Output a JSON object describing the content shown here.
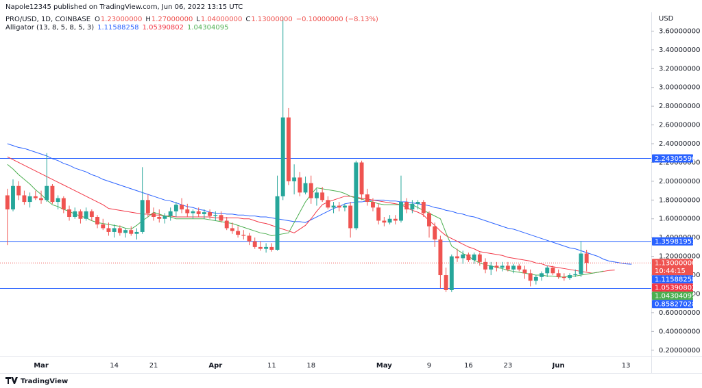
{
  "chart_data": {
    "type": "candlestick",
    "header": "Napole12345 published on TradingView.com, Jun 06, 2022 13:15 UTC",
    "legend": {
      "symbol": "PRO/USD, 1D, COINBASE",
      "items": [
        {
          "key": "O",
          "value": "1.23000000"
        },
        {
          "key": "H",
          "value": "1.27000000"
        },
        {
          "key": "L",
          "value": "1.04000000"
        },
        {
          "key": "C",
          "value": "1.13000000"
        }
      ],
      "change": "−0.10000000 (−8.13%)"
    },
    "indicator": "Alligator (13, 8, 5, 8, 5, 3)",
    "currency": "USD",
    "brand": "TradingView",
    "up_color": "#26a69a",
    "down_color": "#ef5350",
    "grid": false,
    "categories": [
      null,
      null,
      null,
      null,
      null,
      null,
      "Mar",
      null,
      null,
      null,
      null,
      null,
      null,
      null,
      null,
      null,
      null,
      null,
      null,
      "14",
      null,
      null,
      null,
      null,
      null,
      null,
      "21",
      null,
      null,
      null,
      null,
      null,
      null,
      null,
      null,
      null,
      null,
      "Apr",
      null,
      null,
      null,
      null,
      null,
      null,
      null,
      null,
      null,
      "11",
      null,
      null,
      null,
      null,
      null,
      null,
      "18",
      null,
      null,
      null,
      null,
      null,
      null,
      null,
      null,
      null,
      null,
      null,
      null,
      "May",
      null,
      null,
      null,
      null,
      null,
      null,
      null,
      "9",
      null,
      null,
      null,
      null,
      null,
      null,
      "16",
      null,
      null,
      null,
      null,
      null,
      null,
      "23",
      null,
      null,
      null,
      null,
      null,
      null,
      null,
      null,
      "Jun",
      null,
      null,
      null,
      null,
      null,
      null,
      null,
      null,
      null,
      null,
      null,
      "13",
      null,
      null,
      null,
      null
    ],
    "open": [
      1.85,
      1.7,
      1.95,
      1.85,
      1.78,
      1.84,
      1.82,
      1.8,
      1.95,
      1.78,
      1.82,
      1.7,
      1.62,
      1.68,
      1.6,
      1.68,
      1.62,
      1.54,
      1.5,
      1.46,
      1.5,
      1.45,
      1.48,
      1.44,
      1.46,
      1.8,
      1.66,
      1.62,
      1.6,
      1.63,
      1.68,
      1.75,
      1.7,
      1.66,
      1.68,
      1.65,
      1.67,
      1.63,
      1.64,
      1.58,
      1.5,
      1.47,
      1.43,
      1.42,
      1.36,
      1.3,
      1.28,
      1.3,
      1.27,
      1.84,
      2.68,
      2.0,
      2.04,
      1.88,
      1.98,
      1.82,
      1.88,
      1.8,
      1.72,
      1.74,
      1.72,
      1.74,
      1.5,
      2.2,
      1.86,
      1.78,
      1.72,
      1.58,
      1.56,
      1.6,
      1.58,
      1.78,
      1.7,
      1.76,
      1.78,
      1.66,
      1.52,
      1.38,
      1.0,
      0.84,
      1.2,
      1.18,
      1.22,
      1.16,
      1.22,
      1.14,
      1.06,
      1.1,
      1.08,
      1.1,
      1.06,
      1.1,
      1.06,
      1.02,
      0.94,
      0.98,
      1.02,
      1.08,
      1.02,
      0.98,
      0.97,
      1.0,
      1.01,
      1.23,
      null,
      null,
      null,
      null,
      null,
      null,
      null,
      null,
      null,
      null,
      null
    ],
    "high": [
      1.92,
      2.02,
      2.0,
      1.9,
      1.88,
      1.9,
      1.9,
      2.3,
      1.97,
      1.85,
      1.84,
      1.74,
      1.72,
      1.7,
      1.72,
      1.7,
      1.64,
      1.6,
      1.56,
      1.54,
      1.53,
      1.5,
      1.52,
      1.5,
      2.15,
      1.86,
      1.72,
      1.7,
      1.66,
      1.72,
      1.78,
      1.82,
      1.76,
      1.7,
      1.72,
      1.7,
      1.7,
      1.68,
      1.68,
      1.62,
      1.56,
      1.52,
      1.48,
      1.45,
      1.4,
      1.36,
      1.34,
      1.34,
      2.06,
      3.75,
      2.78,
      2.18,
      2.1,
      2.05,
      2.06,
      1.92,
      1.94,
      1.84,
      1.78,
      1.78,
      1.76,
      1.78,
      2.22,
      2.22,
      1.92,
      1.82,
      1.76,
      1.62,
      1.64,
      1.64,
      2.06,
      1.82,
      1.8,
      1.8,
      1.8,
      1.68,
      1.56,
      1.42,
      1.08,
      1.22,
      1.28,
      1.26,
      1.24,
      1.24,
      1.24,
      1.18,
      1.14,
      1.14,
      1.14,
      1.14,
      1.12,
      1.12,
      1.1,
      1.06,
      1.0,
      1.04,
      1.1,
      1.1,
      1.06,
      1.02,
      1.02,
      1.06,
      1.36,
      1.27,
      null,
      null,
      null,
      null,
      null,
      null,
      null,
      null,
      null,
      null,
      null
    ],
    "low": [
      1.32,
      1.68,
      1.8,
      1.75,
      1.72,
      1.8,
      1.76,
      1.78,
      1.76,
      1.7,
      1.66,
      1.58,
      1.6,
      1.55,
      1.58,
      1.58,
      1.5,
      1.48,
      1.42,
      1.4,
      1.42,
      1.4,
      1.42,
      1.38,
      1.44,
      1.62,
      1.58,
      1.56,
      1.55,
      1.58,
      1.62,
      1.66,
      1.62,
      1.6,
      1.62,
      1.6,
      1.6,
      1.58,
      1.56,
      1.48,
      1.44,
      1.4,
      1.38,
      1.32,
      1.28,
      1.26,
      1.24,
      1.25,
      1.26,
      1.8,
      1.96,
      1.86,
      1.84,
      1.86,
      1.76,
      1.74,
      1.78,
      1.7,
      1.66,
      1.68,
      1.68,
      1.4,
      1.48,
      1.8,
      1.74,
      1.68,
      1.54,
      1.52,
      1.54,
      1.54,
      1.56,
      1.66,
      1.66,
      1.7,
      1.62,
      1.4,
      1.3,
      0.86,
      0.82,
      0.82,
      1.14,
      1.12,
      1.14,
      1.12,
      1.1,
      1.02,
      1.0,
      1.04,
      1.04,
      1.04,
      1.02,
      1.04,
      0.96,
      0.88,
      0.9,
      0.94,
      0.98,
      1.0,
      0.96,
      0.94,
      0.95,
      0.98,
      0.98,
      1.04,
      null,
      null,
      null,
      null,
      null,
      null,
      null,
      null,
      null,
      null,
      null
    ],
    "close": [
      1.7,
      1.95,
      1.85,
      1.78,
      1.84,
      1.82,
      1.8,
      1.95,
      1.78,
      1.82,
      1.7,
      1.62,
      1.68,
      1.6,
      1.68,
      1.62,
      1.54,
      1.5,
      1.46,
      1.5,
      1.45,
      1.48,
      1.44,
      1.46,
      1.8,
      1.66,
      1.62,
      1.6,
      1.63,
      1.68,
      1.75,
      1.7,
      1.66,
      1.68,
      1.65,
      1.67,
      1.63,
      1.64,
      1.58,
      1.5,
      1.47,
      1.43,
      1.42,
      1.36,
      1.3,
      1.28,
      1.3,
      1.27,
      1.84,
      2.68,
      2.0,
      2.04,
      1.88,
      1.98,
      1.82,
      1.88,
      1.8,
      1.72,
      1.74,
      1.72,
      1.74,
      1.5,
      2.2,
      1.86,
      1.78,
      1.72,
      1.58,
      1.56,
      1.6,
      1.58,
      1.78,
      1.7,
      1.76,
      1.78,
      1.66,
      1.52,
      1.38,
      1.0,
      0.84,
      1.2,
      1.18,
      1.22,
      1.16,
      1.22,
      1.14,
      1.06,
      1.1,
      1.08,
      1.1,
      1.06,
      1.1,
      1.06,
      1.02,
      0.94,
      0.98,
      1.02,
      1.08,
      1.02,
      0.98,
      0.97,
      1.0,
      1.01,
      1.23,
      1.13,
      null,
      null,
      null,
      null,
      null,
      null,
      null,
      null,
      null,
      null,
      null
    ],
    "series": [
      {
        "color": "#2962ff",
        "values": [
          2.4,
          2.38,
          2.36,
          2.35,
          2.33,
          2.31,
          2.29,
          2.27,
          2.24,
          2.22,
          2.19,
          2.17,
          2.14,
          2.12,
          2.1,
          2.07,
          2.05,
          2.02,
          2.0,
          1.98,
          1.96,
          1.94,
          1.92,
          1.9,
          1.88,
          1.86,
          1.84,
          1.82,
          1.8,
          1.79,
          1.77,
          1.75,
          1.73,
          1.72,
          1.7,
          1.69,
          1.67,
          1.66,
          1.66,
          1.65,
          1.65,
          1.64,
          1.64,
          1.63,
          1.63,
          1.62,
          1.62,
          1.61,
          1.6,
          1.59,
          1.58,
          1.57,
          1.57,
          1.56,
          1.59,
          1.62,
          1.65,
          1.68,
          1.71,
          1.73,
          1.76,
          1.77,
          1.78,
          1.78,
          1.79,
          1.8,
          1.8,
          1.8,
          1.79,
          1.79,
          1.78,
          1.78,
          1.77,
          1.76,
          1.75,
          1.74,
          1.72,
          1.71,
          1.69,
          1.68,
          1.66,
          1.65,
          1.63,
          1.62,
          1.6,
          1.58,
          1.56,
          1.54,
          1.52,
          1.5,
          1.49,
          1.47,
          1.45,
          1.43,
          1.41,
          1.39,
          1.37,
          1.35,
          1.33,
          1.31,
          1.29,
          1.28,
          1.26,
          1.24,
          1.22,
          1.2,
          1.17,
          1.15,
          1.14,
          1.13,
          1.12,
          1.11588258,
          null,
          null,
          null
        ]
      },
      {
        "color": "#f23645",
        "values": [
          2.26,
          2.23,
          2.2,
          2.17,
          2.14,
          2.11,
          2.08,
          2.05,
          2.02,
          1.99,
          1.96,
          1.93,
          1.9,
          1.87,
          1.84,
          1.81,
          1.78,
          1.75,
          1.71,
          1.7,
          1.69,
          1.68,
          1.67,
          1.66,
          1.65,
          1.65,
          1.64,
          1.64,
          1.63,
          1.63,
          1.62,
          1.62,
          1.62,
          1.62,
          1.62,
          1.62,
          1.62,
          1.61,
          1.61,
          1.61,
          1.61,
          1.61,
          1.6,
          1.6,
          1.58,
          1.56,
          1.55,
          1.53,
          1.51,
          1.49,
          1.47,
          1.45,
          1.49,
          1.53,
          1.6,
          1.68,
          1.75,
          1.78,
          1.8,
          1.82,
          1.84,
          1.84,
          1.83,
          1.82,
          1.81,
          1.8,
          1.79,
          1.78,
          1.77,
          1.76,
          1.75,
          1.72,
          1.69,
          1.67,
          1.64,
          1.58,
          1.53,
          1.47,
          1.42,
          1.39,
          1.36,
          1.33,
          1.3,
          1.28,
          1.25,
          1.24,
          1.23,
          1.22,
          1.21,
          1.19,
          1.18,
          1.17,
          1.16,
          1.15,
          1.13,
          1.12,
          1.1,
          1.09,
          1.08,
          1.07,
          1.06,
          1.05,
          1.04,
          1.03,
          1.02,
          1.03,
          1.04,
          1.05,
          1.05390802,
          null,
          null,
          null,
          null,
          null,
          null
        ]
      },
      {
        "color": "#4caf50",
        "values": [
          2.18,
          2.13,
          2.07,
          2.02,
          1.97,
          1.91,
          1.86,
          1.8,
          1.75,
          1.73,
          1.7,
          1.68,
          1.65,
          1.63,
          1.61,
          1.58,
          1.56,
          1.55,
          1.54,
          1.53,
          1.52,
          1.5,
          1.49,
          1.53,
          1.58,
          1.62,
          1.67,
          1.65,
          1.63,
          1.62,
          1.6,
          1.6,
          1.6,
          1.6,
          1.6,
          1.6,
          1.59,
          1.58,
          1.57,
          1.56,
          1.55,
          1.53,
          1.51,
          1.49,
          1.47,
          1.45,
          1.44,
          1.42,
          1.43,
          1.44,
          1.45,
          1.56,
          1.67,
          1.78,
          1.86,
          1.93,
          1.92,
          1.91,
          1.9,
          1.89,
          1.87,
          1.84,
          1.82,
          1.81,
          1.79,
          1.78,
          1.76,
          1.75,
          1.75,
          1.75,
          1.75,
          1.75,
          1.75,
          1.72,
          1.69,
          1.66,
          1.63,
          1.6,
          1.45,
          1.31,
          1.27,
          1.23,
          1.2,
          1.16,
          1.13,
          1.11,
          1.1,
          1.08,
          1.07,
          1.05,
          1.04,
          1.03,
          1.02,
          1.01,
          1.0,
          1.0,
          0.99,
          0.99,
          0.98,
          0.98,
          0.99,
          0.99,
          1.0,
          1.01,
          1.02,
          1.03,
          1.04304095,
          null,
          null,
          null,
          null,
          null,
          null,
          null,
          null
        ]
      }
    ],
    "horizontal_lines": [
      {
        "value": 2.2430559,
        "label": "2.24305590",
        "color": "#2962ff"
      },
      {
        "value": 1.35981951,
        "label": "1.35981951",
        "color": "#2962ff"
      },
      {
        "value": 0.85827028,
        "label": "0.85827028",
        "color": "#2962ff"
      }
    ],
    "last_price": {
      "value": 1.13,
      "label": "1.13000000",
      "countdown": "10:44:15",
      "color": "#ef5350"
    },
    "ylim": [
      0.14,
      3.8
    ],
    "yticks": [
      {
        "value": 0.2,
        "label": "0.20000000"
      },
      {
        "value": 0.4,
        "label": "0.40000000"
      },
      {
        "value": 0.6,
        "label": "0.60000000"
      },
      {
        "value": 0.8,
        "label": "0.80000000"
      },
      {
        "value": 1.0,
        "label": "1.00000000"
      },
      {
        "value": 1.2,
        "label": "1.20000000"
      },
      {
        "value": 1.4,
        "label": "1.40000000"
      },
      {
        "value": 1.6,
        "label": "1.60000000"
      },
      {
        "value": 1.8,
        "label": "1.80000000"
      },
      {
        "value": 2.0,
        "label": "2.00000000"
      },
      {
        "value": 2.2,
        "label": "2.20000000"
      },
      {
        "value": 2.4,
        "label": "2.40000000"
      },
      {
        "value": 2.6,
        "label": "2.60000000"
      },
      {
        "value": 2.8,
        "label": "2.80000000"
      },
      {
        "value": 3.0,
        "label": "3.00000000"
      },
      {
        "value": 3.2,
        "label": "3.20000000"
      },
      {
        "value": 3.4,
        "label": "3.40000000"
      },
      {
        "value": 3.6,
        "label": "3.60000000"
      }
    ]
  }
}
